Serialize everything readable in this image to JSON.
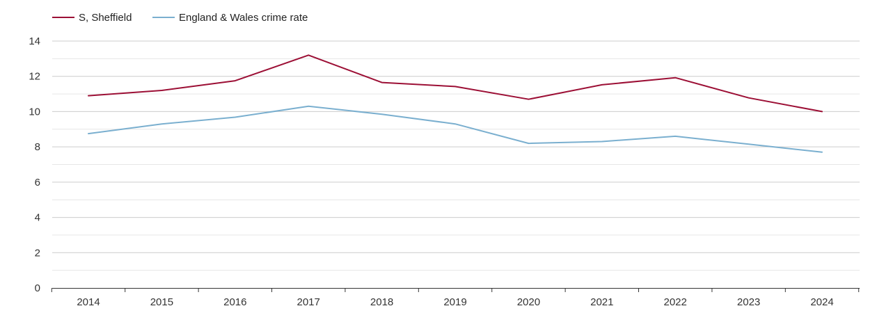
{
  "chart_data": {
    "type": "line",
    "title": "",
    "xlabel": "",
    "ylabel": "",
    "categories": [
      "2014",
      "2015",
      "2016",
      "2017",
      "2018",
      "2019",
      "2020",
      "2021",
      "2022",
      "2023",
      "2024"
    ],
    "ylim": [
      0,
      14
    ],
    "yticks": [
      "0",
      "2",
      "4",
      "6",
      "8",
      "10",
      "12",
      "14"
    ],
    "grid": true,
    "legend_position": "top-left",
    "series": [
      {
        "name": "S, Sheffield",
        "color": "#9c0f35",
        "values": [
          10.9,
          11.2,
          11.75,
          13.2,
          11.65,
          11.42,
          10.7,
          11.52,
          11.92,
          10.78,
          10.0
        ]
      },
      {
        "name": "England & Wales crime rate",
        "color": "#7aafcf",
        "values": [
          8.75,
          9.3,
          9.68,
          10.3,
          9.85,
          9.3,
          8.2,
          8.3,
          8.6,
          8.15,
          7.7
        ]
      }
    ]
  }
}
